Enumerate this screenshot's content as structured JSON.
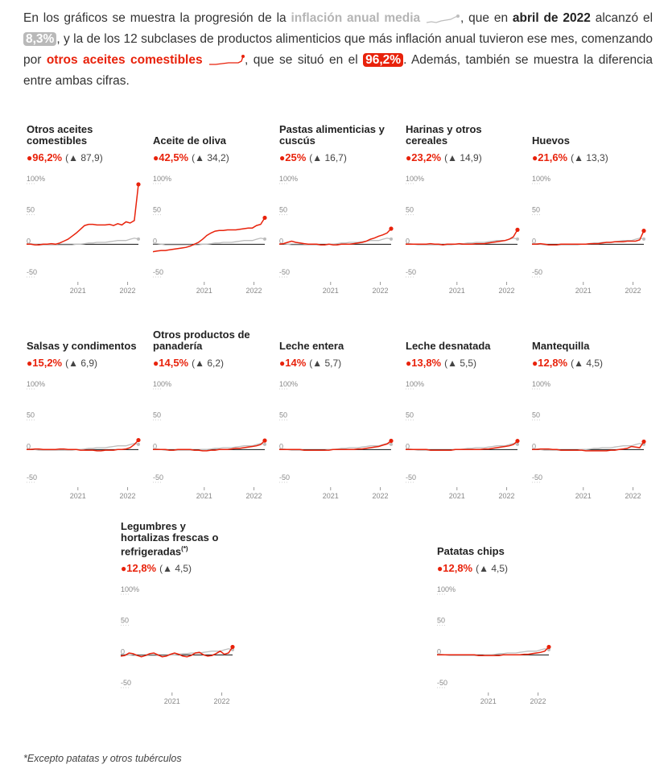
{
  "intro": {
    "p1": "En los gráficos se muestra la progresión de la ",
    "series_avg": "inflación anual media",
    "p2": ", que en ",
    "month": "abril de 2022",
    "p3": " alcanzó el ",
    "avg_value": "8,3%",
    "p4": ", y la de los 12 subclases de productos alimenticios que más inflación anual tuvieron ese mes, comenzando por ",
    "series_top": "otros aceites comestibles",
    "p5": ", que se situó en el ",
    "top_value": "96,2%",
    "p6": ". Además, también se muestra la diferencia entre ambas cifras."
  },
  "colors": {
    "product": "#e8220b",
    "average": "#bdbdbd",
    "zero_line": "#111111",
    "axis_text": "#888888"
  },
  "footnote": "*Excepto patatas y otros tubérculos",
  "chart_data": {
    "type": "line",
    "small_multiples": true,
    "y_ticks": [
      "100%",
      "50",
      "0",
      "-50"
    ],
    "ylim": [
      -50,
      100
    ],
    "x_ticks": [
      "2021",
      "2022"
    ],
    "x_range": [
      "2020-01",
      "2022-04"
    ],
    "panels": [
      {
        "title": "Otros aceites comestibles",
        "value": "96,2%",
        "diff": "(▲ 87,9)",
        "series": [
          {
            "name": "Otros aceites comestibles",
            "values": [
              0,
              0,
              -1,
              -1,
              0,
              0,
              1,
              0,
              2,
              5,
              8,
              13,
              18,
              24,
              30,
              32,
              32,
              31,
              31,
              31,
              32,
              30,
              33,
              31,
              36,
              34,
              38,
              96.2
            ]
          }
        ]
      },
      {
        "title": "Aceite de oliva",
        "value": "42,5%",
        "diff": "(▲ 34,2)",
        "series": [
          {
            "name": "Aceite de oliva",
            "values": [
              -12,
              -11,
              -10,
              -10,
              -9,
              -8,
              -7,
              -6,
              -5,
              -3,
              0,
              3,
              8,
              14,
              18,
              21,
              22,
              22,
              23,
              23,
              23,
              24,
              25,
              26,
              26,
              30,
              32,
              42.5
            ]
          }
        ]
      },
      {
        "title": "Pastas alimenticias y cuscús",
        "value": "25%",
        "diff": "(▲ 16,7)",
        "series": [
          {
            "name": "Pastas alimenticias y cuscús",
            "values": [
              0,
              1,
              3,
              5,
              3,
              2,
              1,
              0,
              0,
              0,
              -1,
              -1,
              0,
              -1,
              -1,
              0,
              0,
              0,
              1,
              2,
              3,
              5,
              8,
              10,
              13,
              15,
              18,
              25
            ]
          }
        ]
      },
      {
        "title": "Harinas y otros cereales",
        "value": "23,2%",
        "diff": "(▲ 14,9)",
        "series": [
          {
            "name": "Harinas y otros cereales",
            "values": [
              0,
              0,
              0,
              0,
              0,
              0,
              1,
              0,
              0,
              -1,
              0,
              0,
              0,
              1,
              0,
              0,
              0,
              1,
              1,
              1,
              2,
              3,
              4,
              5,
              6,
              8,
              12,
              23.2
            ]
          }
        ]
      },
      {
        "title": "Huevos",
        "value": "21,6%",
        "diff": "(▲ 13,3)",
        "series": [
          {
            "name": "Huevos",
            "values": [
              0,
              0,
              1,
              0,
              -1,
              -1,
              -1,
              0,
              0,
              0,
              0,
              0,
              0,
              0,
              1,
              1,
              1,
              2,
              3,
              3,
              4,
              4,
              4,
              5,
              5,
              5,
              7,
              21.6
            ]
          }
        ]
      },
      {
        "title": "Salsas y condimentos",
        "value": "15,2%",
        "diff": "(▲ 6,9)",
        "series": [
          {
            "name": "Salsas y condimentos",
            "values": [
              0,
              0,
              1,
              1,
              0,
              0,
              0,
              0,
              1,
              1,
              0,
              0,
              0,
              -1,
              -1,
              -1,
              -1,
              -2,
              -2,
              -1,
              -1,
              -1,
              0,
              0,
              1,
              3,
              8,
              15.2
            ]
          }
        ]
      },
      {
        "title": "Otros productos de panadería",
        "value": "14,5%",
        "diff": "(▲ 6,2)",
        "series": [
          {
            "name": "Otros productos de panadería",
            "values": [
              0,
              0,
              0,
              0,
              -1,
              -1,
              0,
              0,
              0,
              0,
              -1,
              -1,
              -2,
              -2,
              -1,
              -1,
              0,
              0,
              0,
              1,
              2,
              2,
              3,
              4,
              5,
              6,
              8,
              14.5
            ]
          }
        ]
      },
      {
        "title": "Leche entera",
        "value": "14%",
        "diff": "(▲ 5,7)",
        "series": [
          {
            "name": "Leche entera",
            "values": [
              0,
              0,
              0,
              0,
              0,
              0,
              -1,
              -1,
              -1,
              -1,
              -1,
              -1,
              -1,
              0,
              0,
              0,
              0,
              0,
              0,
              1,
              1,
              2,
              3,
              4,
              5,
              7,
              9,
              14
            ]
          }
        ]
      },
      {
        "title": "Leche desnatada",
        "value": "13,8%",
        "diff": "(▲ 5,5)",
        "series": [
          {
            "name": "Leche desnatada",
            "values": [
              0,
              0,
              0,
              0,
              0,
              0,
              -1,
              -1,
              -1,
              -1,
              -1,
              -1,
              0,
              0,
              0,
              0,
              0,
              0,
              0,
              1,
              1,
              2,
              3,
              4,
              5,
              6,
              8,
              13.8
            ]
          }
        ]
      },
      {
        "title": "Mantequilla",
        "value": "12,8%",
        "diff": "(▲ 4,5)",
        "series": [
          {
            "name": "Mantequilla",
            "values": [
              0,
              0,
              1,
              1,
              1,
              0,
              0,
              -1,
              -1,
              -1,
              -1,
              -1,
              -1,
              -2,
              -2,
              -2,
              -2,
              -2,
              -2,
              -1,
              -1,
              0,
              1,
              2,
              5,
              4,
              3,
              12.8
            ]
          }
        ]
      },
      {
        "title": "Legumbres y hortalizas frescas o refrigeradas",
        "title_sup": "(*)",
        "value": "12,8%",
        "diff": "(▲ 4,5)",
        "series": [
          {
            "name": "Legumbres y hortalizas frescas o refrigeradas",
            "values": [
              -2,
              -1,
              3,
              2,
              -1,
              -3,
              -1,
              2,
              3,
              0,
              -3,
              -2,
              1,
              3,
              1,
              -2,
              -3,
              -1,
              3,
              4,
              0,
              -2,
              -1,
              2,
              6,
              1,
              3,
              12.8
            ]
          }
        ]
      },
      {
        "title": "Patatas chips",
        "value": "12,8%",
        "diff": "(▲ 4,5)",
        "series": [
          {
            "name": "Patatas chips",
            "values": [
              0,
              0,
              0,
              0,
              0,
              0,
              0,
              0,
              0,
              0,
              -1,
              -1,
              -1,
              -1,
              -1,
              -1,
              0,
              0,
              0,
              0,
              0,
              1,
              1,
              2,
              3,
              4,
              6,
              12.8
            ]
          }
        ]
      }
    ],
    "average": {
      "name": "inflación anual media",
      "values": [
        1,
        1,
        0,
        -1,
        -1,
        -1,
        -1,
        -1,
        -1,
        -1,
        -1,
        -1,
        0,
        0,
        1,
        2,
        2,
        3,
        3,
        3,
        4,
        5,
        6,
        6,
        6,
        8,
        9.8,
        8.3
      ]
    }
  }
}
